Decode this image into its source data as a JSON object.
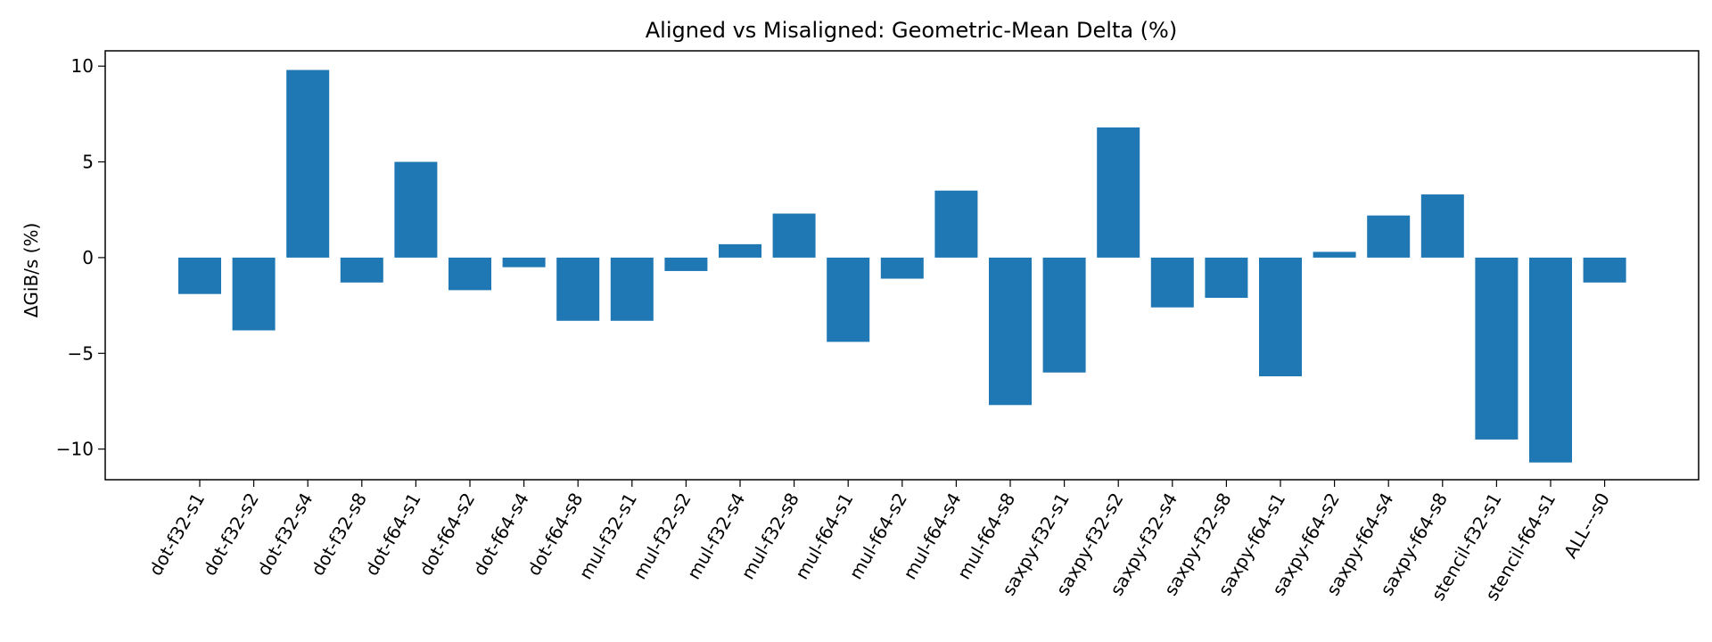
{
  "chart_data": {
    "type": "bar",
    "title": "Aligned vs Misaligned: Geometric-Mean Delta (%)",
    "xlabel": "",
    "ylabel": "ΔGiB/s (%)",
    "ylim": [
      -11.6,
      10.8
    ],
    "yticks": [
      -10,
      -5,
      0,
      5,
      10
    ],
    "grid": false,
    "bar_color": "#1f77b4",
    "categories": [
      "dot-f32-s1",
      "dot-f32-s2",
      "dot-f32-s4",
      "dot-f32-s8",
      "dot-f64-s1",
      "dot-f64-s2",
      "dot-f64-s4",
      "dot-f64-s8",
      "mul-f32-s1",
      "mul-f32-s2",
      "mul-f32-s4",
      "mul-f32-s8",
      "mul-f64-s1",
      "mul-f64-s2",
      "mul-f64-s4",
      "mul-f64-s8",
      "saxpy-f32-s1",
      "saxpy-f32-s2",
      "saxpy-f32-s4",
      "saxpy-f32-s8",
      "saxpy-f64-s1",
      "saxpy-f64-s2",
      "saxpy-f64-s4",
      "saxpy-f64-s8",
      "stencil-f32-s1",
      "stencil-f64-s1",
      "ALL---s0"
    ],
    "values": [
      -1.9,
      -3.8,
      9.8,
      -1.3,
      5.0,
      -1.7,
      -0.5,
      -3.3,
      -3.3,
      -0.7,
      0.7,
      2.3,
      -4.4,
      -1.1,
      3.5,
      -7.7,
      -6.0,
      6.8,
      -2.6,
      -2.1,
      -6.2,
      0.3,
      2.2,
      3.3,
      -9.5,
      -10.7,
      -1.3
    ]
  }
}
